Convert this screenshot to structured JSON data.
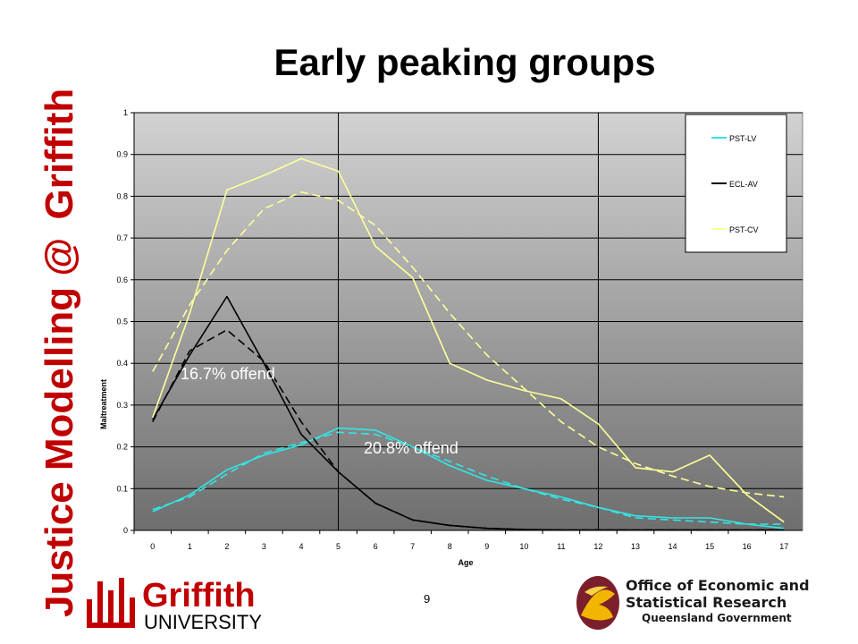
{
  "slide": {
    "side_title": {
      "justice": "Justice",
      "modelling": "Modelling",
      "at": "@",
      "griffith": "Griffith"
    },
    "title": "Early peaking groups",
    "page_number": "9",
    "annotations": [
      "16.7% offend",
      "20.8% offend"
    ]
  },
  "logos": {
    "griffith": {
      "line1": "Griffith",
      "line2": "UNIVERSITY"
    },
    "oesr": {
      "line1": "Office of Economic and",
      "line2": "Statistical Research",
      "line3": "Queensland Government"
    }
  },
  "colors": {
    "side_title": "#c00000",
    "pst_lv": "#33e6e6",
    "ecl_av": "#000000",
    "pst_cv": "#ffff99",
    "plot_top": "#d2d2d2",
    "plot_bottom": "#6e6e6e"
  },
  "chart_data": {
    "type": "line",
    "xlabel": "Age",
    "ylabel": "Maltreatment",
    "x": [
      0,
      1,
      2,
      3,
      4,
      5,
      6,
      7,
      8,
      9,
      10,
      11,
      12,
      13,
      14,
      15,
      16,
      17
    ],
    "ylim": [
      0,
      1
    ],
    "yticks": [
      "0",
      "0.1",
      "0.2",
      "0.3",
      "0.4",
      "0.5",
      "0.6",
      "0.7",
      "0.8",
      "0.9",
      "1"
    ],
    "grid": "horizontal",
    "legend_position": "top-right",
    "vertical_markers": [
      5,
      12
    ],
    "series": [
      {
        "name": "PST-LV",
        "style": "solid",
        "color": "#33e6e6",
        "values": [
          0.045,
          0.085,
          0.145,
          0.18,
          0.205,
          0.245,
          0.24,
          0.2,
          0.155,
          0.12,
          0.1,
          0.08,
          0.055,
          0.035,
          0.03,
          0.03,
          0.015,
          0.005
        ]
      },
      {
        "style": "dashed",
        "color": "#33e6e6",
        "values": [
          0.05,
          0.08,
          0.135,
          0.185,
          0.21,
          0.235,
          0.23,
          0.2,
          0.165,
          0.13,
          0.1,
          0.075,
          0.055,
          0.03,
          0.025,
          0.02,
          0.015,
          0.015
        ]
      },
      {
        "name": "ECL-AV",
        "style": "solid",
        "color": "#000000",
        "values": [
          0.265,
          0.42,
          0.56,
          0.4,
          0.23,
          0.14,
          0.065,
          0.025,
          0.012,
          0.005,
          0.002,
          0.001,
          0.001,
          0.001,
          0.001,
          0.001,
          0.001,
          0.001
        ]
      },
      {
        "style": "dashed",
        "color": "#000000",
        "values": [
          0.26,
          0.43,
          0.48,
          0.405,
          0.26,
          0.14,
          0.065,
          0.025,
          0.012,
          0.005,
          0.002,
          0.001,
          0.001,
          0.001,
          0.001,
          0.001,
          0.001,
          0.001
        ]
      },
      {
        "name": "PST-CV",
        "style": "solid",
        "color": "#ffff99",
        "values": [
          0.27,
          0.52,
          0.815,
          0.85,
          0.89,
          0.86,
          0.68,
          0.605,
          0.4,
          0.36,
          0.335,
          0.315,
          0.255,
          0.15,
          0.14,
          0.18,
          0.085,
          0.02
        ]
      },
      {
        "style": "dashed",
        "color": "#ffff99",
        "values": [
          0.38,
          0.54,
          0.67,
          0.77,
          0.81,
          0.79,
          0.73,
          0.63,
          0.52,
          0.42,
          0.34,
          0.26,
          0.2,
          0.16,
          0.13,
          0.105,
          0.09,
          0.08
        ]
      }
    ]
  }
}
